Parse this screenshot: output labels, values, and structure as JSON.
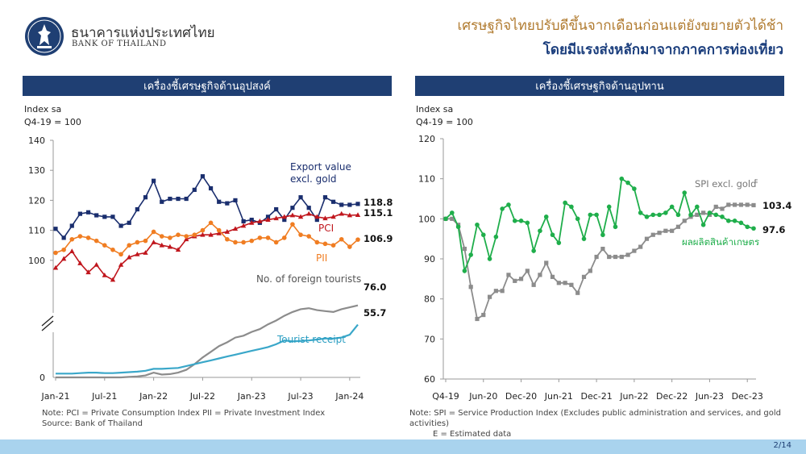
{
  "header": {
    "org_name_th": "ธนาคารแห่งประเทศไทย",
    "org_name_en": "BANK OF THAILAND",
    "headline_line1": "เศรษฐกิจไทยปรับดีขึ้นจากเดือนก่อนแต่ยังขยายตัวได้ช้า",
    "headline_line2": "โดยมีแรงส่งหลักมาจากภาคการท่องเที่ยว"
  },
  "colors": {
    "band": "#1f3f73",
    "export": "#1a2e6e",
    "pci": "#c0161d",
    "pii": "#f07d22",
    "foreign_tourists": "#8c8c8c",
    "tourist_receipt": "#3aa7c9",
    "spi": "#8c8c8c",
    "agri": "#1fae4b"
  },
  "left_panel": {
    "band_title": "เครื่องชี้เศรษฐกิจด้านอุปสงค์",
    "unit_line1": "Index sa",
    "unit_line2": "Q4-19 = 100",
    "note_line1": "Note: PCI = Private Consumption Index    PII = Private Investment Index",
    "note_line2": "Source: Bank of Thailand"
  },
  "right_panel": {
    "band_title": "เครื่องชี้เศรษฐกิจด้านอุปทาน",
    "unit_line1": "Index sa",
    "unit_line2": "Q4-19 = 100",
    "note_line1": "Note: SPI = Service Production Index (Excludes public administration and services, and gold activities)",
    "note_line2": "E = Estimated data"
  },
  "footer": {
    "page_number": "2/14"
  },
  "chart_data": [
    {
      "type": "line",
      "title": "เครื่องชี้เศรษฐกิจด้านอุปสงค์",
      "ylabel": "Index sa Q4-19 = 100",
      "x_ticks": [
        "Jan-21",
        "Jul-21",
        "Jan-22",
        "Jul-22",
        "Jan-23",
        "Jul-23",
        "Jan-24"
      ],
      "x_tick_index": [
        0,
        6,
        12,
        18,
        24,
        30,
        36
      ],
      "upper_ylim": [
        90,
        140
      ],
      "upper_yticks": [
        "140",
        "130",
        "120",
        "110",
        "100"
      ],
      "lower_ylim": [
        0,
        80
      ],
      "lower_yticks": [
        "0"
      ],
      "axis_break": true,
      "series": [
        {
          "name": "Export value excl. gold",
          "name_lines": [
            "Export value",
            "excl. gold"
          ],
          "axis": "upper",
          "marker": "square",
          "color": "#1a2e6e",
          "end_label": "118.8",
          "values": [
            110.5,
            107.5,
            111.5,
            115.5,
            116,
            115,
            114.5,
            114.5,
            111.5,
            112.5,
            117,
            121,
            126.5,
            119.5,
            120.5,
            120.5,
            120.5,
            123.5,
            128,
            124,
            119.5,
            119,
            120,
            113,
            113.5,
            112.5,
            114.5,
            117,
            113.5,
            117.5,
            121,
            117.5,
            113.5,
            121,
            119.5,
            118.5,
            118.5,
            118.8
          ]
        },
        {
          "name": "PCI",
          "name_lines": [
            "PCI"
          ],
          "axis": "upper",
          "marker": "triangle",
          "color": "#c0161d",
          "end_label": "115.1",
          "values": [
            97.5,
            100.5,
            103,
            99,
            96,
            98.5,
            95,
            93.5,
            98.5,
            101,
            102,
            102.5,
            106,
            105,
            104.5,
            103.5,
            107,
            108,
            108.5,
            108.5,
            109,
            109.5,
            110.5,
            111.5,
            112.5,
            113,
            113.5,
            114,
            114.5,
            115,
            114.5,
            115.5,
            114.5,
            114,
            114.5,
            115.5,
            115,
            115.1
          ]
        },
        {
          "name": "PII",
          "name_lines": [
            "PII"
          ],
          "axis": "upper",
          "marker": "circle",
          "color": "#f07d22",
          "end_label": "106.9",
          "values": [
            102.5,
            103.5,
            107,
            108,
            107.5,
            106.5,
            105,
            103.5,
            102,
            105,
            106,
            106.5,
            109.5,
            108,
            107.5,
            108.5,
            108,
            108.5,
            110,
            112.5,
            110,
            107,
            106,
            106,
            106.5,
            107.5,
            107.5,
            106,
            107.5,
            112,
            108.5,
            108,
            106,
            105.5,
            105,
            107,
            104.5,
            106.9
          ]
        },
        {
          "name": "No. of foreign tourists",
          "name_lines": [
            "No. of foreign tourists"
          ],
          "axis": "lower",
          "marker": "none",
          "color": "#8c8c8c",
          "end_label": "76.0",
          "values": [
            0,
            0,
            0,
            0,
            0,
            0,
            0,
            0,
            0,
            0.5,
            1,
            2,
            5,
            3,
            3.5,
            5,
            8,
            14,
            21,
            27,
            33,
            37,
            42,
            44,
            48,
            51,
            56,
            60,
            65,
            69,
            72,
            73,
            71,
            70,
            69,
            72,
            74,
            76
          ]
        },
        {
          "name": "Tourist receipt",
          "name_lines": [
            "Tourist receipt"
          ],
          "axis": "lower",
          "marker": "none",
          "color": "#3aa7c9",
          "end_label": "55.7",
          "values": [
            4,
            4,
            4,
            4.5,
            5,
            5,
            4.5,
            4.5,
            5,
            5.5,
            6,
            7,
            9,
            9,
            9.5,
            10,
            12,
            14,
            16,
            18,
            20,
            22,
            24,
            26,
            28,
            30,
            32,
            35,
            39,
            38,
            38.5,
            39,
            40,
            41,
            41,
            42,
            45,
            55.7
          ]
        }
      ]
    },
    {
      "type": "line",
      "title": "เครื่องชี้เศรษฐกิจด้านอุปทาน",
      "ylabel": "Index sa Q4-19 = 100",
      "x_ticks": [
        "Q4-19",
        "Jun-20",
        "Dec-20",
        "Jun-21",
        "Dec-21",
        "Jun-22",
        "Dec-22",
        "Jun-23",
        "Dec-23"
      ],
      "x_tick_index": [
        0,
        6,
        12,
        18,
        24,
        30,
        36,
        42,
        48
      ],
      "ylim": [
        60,
        120
      ],
      "yticks": [
        "120",
        "110",
        "100",
        "90",
        "80",
        "70",
        "60"
      ],
      "series": [
        {
          "name": "SPI excl. gold",
          "name_label": "SPI excl. gold",
          "superscript": "E",
          "marker": "square",
          "color": "#8c8c8c",
          "end_label": "103.4",
          "values": [
            100,
            100,
            98.5,
            92.5,
            83,
            75,
            76,
            80.5,
            82,
            82,
            86,
            84.5,
            85,
            87,
            83.5,
            86,
            89,
            85.5,
            84,
            84,
            83.5,
            81.5,
            85.5,
            87,
            90.5,
            92.5,
            90.5,
            90.5,
            90.5,
            91,
            92,
            93,
            95,
            96,
            96.5,
            97,
            97,
            98,
            99.5,
            100.5,
            101,
            101.5,
            101,
            103,
            102.5,
            103.5,
            103.5,
            103.5,
            103.5,
            103.4
          ]
        },
        {
          "name": "ผลผลิตสินค้าเกษตร",
          "name_label": "ผลผลิตสินค้าเกษตร",
          "superscript": "",
          "marker": "circle",
          "color": "#1fae4b",
          "end_label": "97.6",
          "values": [
            100,
            101.5,
            98,
            87,
            91,
            98.5,
            96,
            90,
            95.5,
            102.5,
            103.5,
            99.5,
            99.5,
            99,
            92,
            97,
            100.5,
            96,
            94,
            104,
            103,
            100,
            95,
            101,
            101,
            96,
            103,
            98,
            110,
            109,
            107.5,
            101.5,
            100.5,
            101,
            101,
            101.5,
            103,
            101,
            106.5,
            101,
            103,
            98.5,
            101.5,
            101,
            100.5,
            99.5,
            99.5,
            99,
            98,
            97.6
          ]
        }
      ]
    }
  ]
}
